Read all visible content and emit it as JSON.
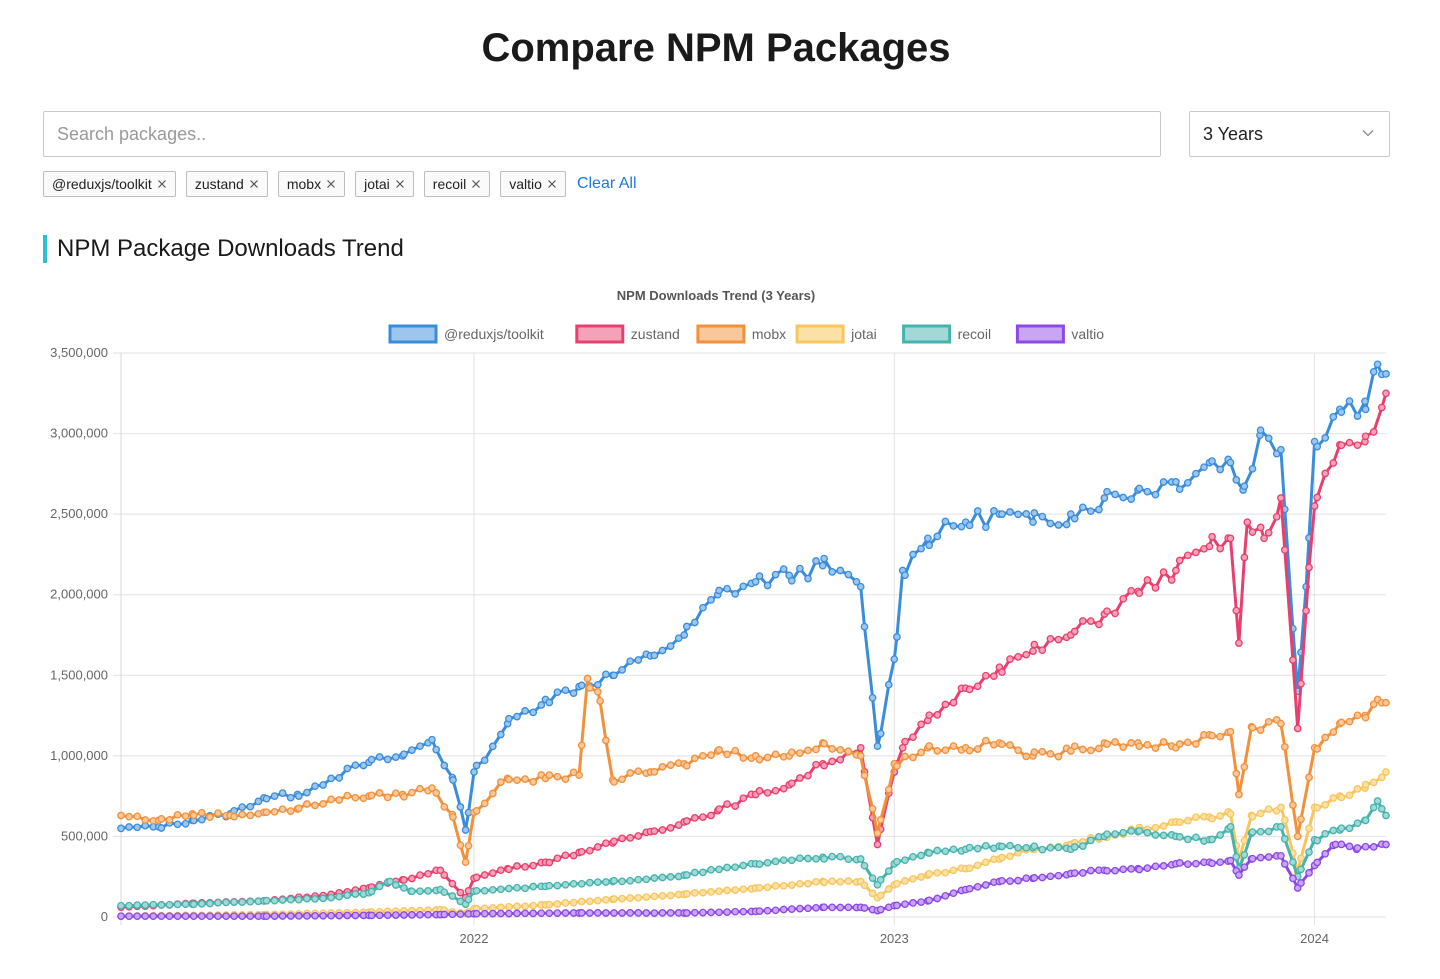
{
  "header": {
    "title": "Compare NPM Packages"
  },
  "search": {
    "placeholder": "Search packages..",
    "value": ""
  },
  "range_select": {
    "value": "3 Years"
  },
  "tags": [
    {
      "label": "@reduxjs/toolkit"
    },
    {
      "label": "zustand"
    },
    {
      "label": "mobx"
    },
    {
      "label": "jotai"
    },
    {
      "label": "recoil"
    },
    {
      "label": "valtio"
    }
  ],
  "clear_all_label": "Clear All",
  "section": {
    "title": "NPM Package Downloads Trend"
  },
  "icons": {
    "remove": "close-icon",
    "dropdown": "chevron-down-icon"
  },
  "chart_data": {
    "type": "line",
    "title": "NPM Downloads Trend (3 Years)",
    "xlabel": "",
    "ylabel": "",
    "ylim": [
      0,
      3500000
    ],
    "yticks": [
      0,
      500000,
      1000000,
      1500000,
      2000000,
      2500000,
      3000000,
      3500000
    ],
    "ytick_labels": [
      "0",
      "500,000",
      "1,000,000",
      "1,500,000",
      "2,000,000",
      "2,500,000",
      "3,000,000",
      "3,500,000"
    ],
    "xlim": [
      2021.16,
      2024.17
    ],
    "xticks": [
      2022,
      2023,
      2024
    ],
    "xtick_labels": [
      "2022",
      "2023",
      "2024"
    ],
    "legend_position": "top-center",
    "grid": true,
    "weeks_per_year": 52,
    "series": [
      {
        "name": "@reduxjs/toolkit",
        "color": "#3a8ddb",
        "fill": "#9cc6ee",
        "anchors": [
          [
            2021.16,
            550000
          ],
          [
            2021.25,
            560000
          ],
          [
            2021.33,
            600000
          ],
          [
            2021.42,
            640000
          ],
          [
            2021.5,
            740000
          ],
          [
            2021.58,
            760000
          ],
          [
            2021.66,
            860000
          ],
          [
            2021.75,
            960000
          ],
          [
            2021.83,
            1000000
          ],
          [
            2021.9,
            1100000
          ],
          [
            2021.95,
            850000
          ],
          [
            2021.98,
            540000
          ],
          [
            2022.0,
            900000
          ],
          [
            2022.08,
            1200000
          ],
          [
            2022.17,
            1350000
          ],
          [
            2022.25,
            1430000
          ],
          [
            2022.33,
            1500000
          ],
          [
            2022.42,
            1620000
          ],
          [
            2022.5,
            1750000
          ],
          [
            2022.58,
            2000000
          ],
          [
            2022.67,
            2080000
          ],
          [
            2022.75,
            2120000
          ],
          [
            2022.83,
            2180000
          ],
          [
            2022.92,
            2050000
          ],
          [
            2022.96,
            1060000
          ],
          [
            2023.0,
            1600000
          ],
          [
            2023.02,
            2150000
          ],
          [
            2023.08,
            2350000
          ],
          [
            2023.17,
            2450000
          ],
          [
            2023.25,
            2500000
          ],
          [
            2023.33,
            2450000
          ],
          [
            2023.42,
            2500000
          ],
          [
            2023.5,
            2600000
          ],
          [
            2023.58,
            2650000
          ],
          [
            2023.67,
            2700000
          ],
          [
            2023.75,
            2820000
          ],
          [
            2023.8,
            2820000
          ],
          [
            2023.83,
            2650000
          ],
          [
            2023.87,
            2990000
          ],
          [
            2023.92,
            2900000
          ],
          [
            2023.96,
            1400000
          ],
          [
            2023.98,
            2050000
          ],
          [
            2024.0,
            2950000
          ],
          [
            2024.06,
            3150000
          ],
          [
            2024.12,
            3200000
          ],
          [
            2024.15,
            3430000
          ],
          [
            2024.17,
            3370000
          ]
        ]
      },
      {
        "name": "zustand",
        "color": "#e8406e",
        "fill": "#f4a2b8",
        "anchors": [
          [
            2021.16,
            60000
          ],
          [
            2021.33,
            85000
          ],
          [
            2021.5,
            100000
          ],
          [
            2021.66,
            140000
          ],
          [
            2021.75,
            180000
          ],
          [
            2021.83,
            230000
          ],
          [
            2021.92,
            290000
          ],
          [
            2021.98,
            120000
          ],
          [
            2022.0,
            240000
          ],
          [
            2022.08,
            300000
          ],
          [
            2022.17,
            340000
          ],
          [
            2022.25,
            400000
          ],
          [
            2022.33,
            460000
          ],
          [
            2022.42,
            530000
          ],
          [
            2022.5,
            590000
          ],
          [
            2022.58,
            660000
          ],
          [
            2022.67,
            760000
          ],
          [
            2022.75,
            820000
          ],
          [
            2022.83,
            950000
          ],
          [
            2022.92,
            1050000
          ],
          [
            2022.96,
            450000
          ],
          [
            2023.0,
            900000
          ],
          [
            2023.02,
            1050000
          ],
          [
            2023.08,
            1220000
          ],
          [
            2023.17,
            1420000
          ],
          [
            2023.25,
            1550000
          ],
          [
            2023.33,
            1650000
          ],
          [
            2023.42,
            1750000
          ],
          [
            2023.5,
            1880000
          ],
          [
            2023.58,
            2020000
          ],
          [
            2023.67,
            2150000
          ],
          [
            2023.75,
            2300000
          ],
          [
            2023.8,
            2350000
          ],
          [
            2023.82,
            1700000
          ],
          [
            2023.84,
            2450000
          ],
          [
            2023.88,
            2350000
          ],
          [
            2023.92,
            2600000
          ],
          [
            2023.96,
            1170000
          ],
          [
            2023.98,
            1900000
          ],
          [
            2024.0,
            2550000
          ],
          [
            2024.06,
            2930000
          ],
          [
            2024.12,
            2950000
          ],
          [
            2024.17,
            3250000
          ]
        ]
      },
      {
        "name": "mobx",
        "color": "#f2913a",
        "fill": "#f8c79b",
        "anchors": [
          [
            2021.16,
            630000
          ],
          [
            2021.25,
            600000
          ],
          [
            2021.33,
            640000
          ],
          [
            2021.42,
            630000
          ],
          [
            2021.5,
            650000
          ],
          [
            2021.58,
            670000
          ],
          [
            2021.66,
            730000
          ],
          [
            2021.75,
            750000
          ],
          [
            2021.83,
            760000
          ],
          [
            2021.9,
            800000
          ],
          [
            2021.95,
            620000
          ],
          [
            2021.98,
            340000
          ],
          [
            2022.0,
            650000
          ],
          [
            2022.08,
            860000
          ],
          [
            2022.17,
            860000
          ],
          [
            2022.25,
            880000
          ],
          [
            2022.27,
            1480000
          ],
          [
            2022.3,
            1340000
          ],
          [
            2022.33,
            850000
          ],
          [
            2022.42,
            900000
          ],
          [
            2022.5,
            950000
          ],
          [
            2022.58,
            1030000
          ],
          [
            2022.67,
            1000000
          ],
          [
            2022.75,
            1000000
          ],
          [
            2022.83,
            1080000
          ],
          [
            2022.92,
            1000000
          ],
          [
            2022.96,
            520000
          ],
          [
            2023.0,
            950000
          ],
          [
            2023.08,
            1050000
          ],
          [
            2023.17,
            1050000
          ],
          [
            2023.25,
            1080000
          ],
          [
            2023.33,
            1000000
          ],
          [
            2023.42,
            1030000
          ],
          [
            2023.5,
            1080000
          ],
          [
            2023.58,
            1080000
          ],
          [
            2023.67,
            1050000
          ],
          [
            2023.75,
            1130000
          ],
          [
            2023.8,
            1150000
          ],
          [
            2023.82,
            760000
          ],
          [
            2023.85,
            1180000
          ],
          [
            2023.92,
            1200000
          ],
          [
            2023.96,
            500000
          ],
          [
            2024.0,
            1050000
          ],
          [
            2024.06,
            1200000
          ],
          [
            2024.12,
            1250000
          ],
          [
            2024.15,
            1350000
          ],
          [
            2024.17,
            1330000
          ]
        ]
      },
      {
        "name": "jotai",
        "color": "#f8c65c",
        "fill": "#fbe1a6",
        "anchors": [
          [
            2021.16,
            5000
          ],
          [
            2021.5,
            15000
          ],
          [
            2021.75,
            30000
          ],
          [
            2021.92,
            45000
          ],
          [
            2021.98,
            20000
          ],
          [
            2022.0,
            50000
          ],
          [
            2022.17,
            75000
          ],
          [
            2022.33,
            110000
          ],
          [
            2022.5,
            140000
          ],
          [
            2022.67,
            180000
          ],
          [
            2022.83,
            220000
          ],
          [
            2022.92,
            220000
          ],
          [
            2022.96,
            120000
          ],
          [
            2023.0,
            200000
          ],
          [
            2023.08,
            260000
          ],
          [
            2023.17,
            300000
          ],
          [
            2023.25,
            360000
          ],
          [
            2023.33,
            420000
          ],
          [
            2023.42,
            450000
          ],
          [
            2023.5,
            500000
          ],
          [
            2023.58,
            540000
          ],
          [
            2023.67,
            590000
          ],
          [
            2023.75,
            620000
          ],
          [
            2023.8,
            640000
          ],
          [
            2023.82,
            350000
          ],
          [
            2023.85,
            630000
          ],
          [
            2023.92,
            680000
          ],
          [
            2023.96,
            280000
          ],
          [
            2024.0,
            680000
          ],
          [
            2024.06,
            750000
          ],
          [
            2024.12,
            800000
          ],
          [
            2024.17,
            900000
          ]
        ]
      },
      {
        "name": "recoil",
        "color": "#45b3ae",
        "fill": "#a2d9d6",
        "anchors": [
          [
            2021.16,
            70000
          ],
          [
            2021.33,
            80000
          ],
          [
            2021.5,
            100000
          ],
          [
            2021.66,
            120000
          ],
          [
            2021.75,
            150000
          ],
          [
            2021.8,
            220000
          ],
          [
            2021.85,
            160000
          ],
          [
            2021.92,
            170000
          ],
          [
            2021.98,
            80000
          ],
          [
            2022.0,
            160000
          ],
          [
            2022.17,
            190000
          ],
          [
            2022.33,
            220000
          ],
          [
            2022.5,
            260000
          ],
          [
            2022.67,
            330000
          ],
          [
            2022.83,
            370000
          ],
          [
            2022.92,
            360000
          ],
          [
            2022.96,
            200000
          ],
          [
            2023.0,
            330000
          ],
          [
            2023.08,
            400000
          ],
          [
            2023.17,
            420000
          ],
          [
            2023.25,
            440000
          ],
          [
            2023.33,
            430000
          ],
          [
            2023.42,
            420000
          ],
          [
            2023.5,
            500000
          ],
          [
            2023.58,
            530000
          ],
          [
            2023.67,
            500000
          ],
          [
            2023.75,
            480000
          ],
          [
            2023.8,
            560000
          ],
          [
            2023.82,
            300000
          ],
          [
            2023.85,
            520000
          ],
          [
            2023.92,
            560000
          ],
          [
            2023.96,
            250000
          ],
          [
            2024.0,
            480000
          ],
          [
            2024.06,
            540000
          ],
          [
            2024.12,
            600000
          ],
          [
            2024.15,
            720000
          ],
          [
            2024.17,
            630000
          ]
        ]
      },
      {
        "name": "valtio",
        "color": "#8e48e5",
        "fill": "#c9a6f4",
        "anchors": [
          [
            2021.16,
            5000
          ],
          [
            2021.5,
            5000
          ],
          [
            2021.75,
            10000
          ],
          [
            2021.92,
            15000
          ],
          [
            2022.0,
            20000
          ],
          [
            2022.25,
            25000
          ],
          [
            2022.5,
            25000
          ],
          [
            2022.67,
            35000
          ],
          [
            2022.83,
            60000
          ],
          [
            2022.92,
            60000
          ],
          [
            2022.96,
            40000
          ],
          [
            2023.0,
            70000
          ],
          [
            2023.08,
            100000
          ],
          [
            2023.17,
            170000
          ],
          [
            2023.25,
            220000
          ],
          [
            2023.33,
            240000
          ],
          [
            2023.42,
            270000
          ],
          [
            2023.5,
            290000
          ],
          [
            2023.58,
            300000
          ],
          [
            2023.67,
            330000
          ],
          [
            2023.75,
            340000
          ],
          [
            2023.8,
            350000
          ],
          [
            2023.82,
            260000
          ],
          [
            2023.85,
            360000
          ],
          [
            2023.92,
            380000
          ],
          [
            2023.96,
            180000
          ],
          [
            2024.0,
            320000
          ],
          [
            2024.05,
            450000
          ],
          [
            2024.1,
            420000
          ],
          [
            2024.17,
            450000
          ]
        ]
      }
    ]
  }
}
